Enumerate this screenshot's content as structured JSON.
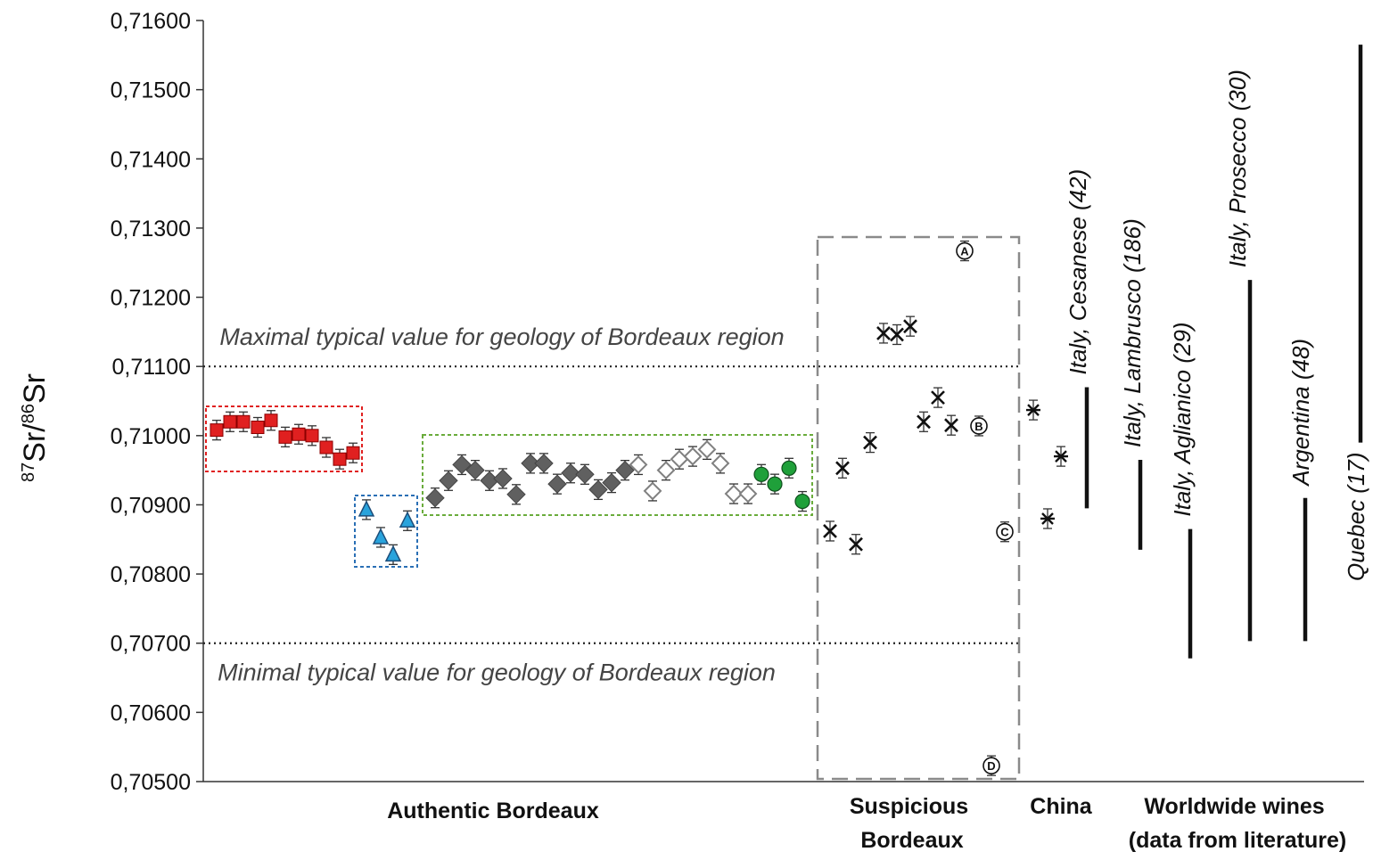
{
  "chart_data": {
    "type": "scatter",
    "ylabel": {
      "sup1": "87",
      "text1": "Sr/",
      "sup2": "86",
      "text2": "Sr"
    },
    "ylim": [
      0.705,
      0.716
    ],
    "yticks": [
      "0,70500",
      "0,70600",
      "0,70700",
      "0,70800",
      "0,70900",
      "0,71000",
      "0,71100",
      "0,71200",
      "0,71300",
      "0,71400",
      "0,71500",
      "0,71600"
    ],
    "grid": false,
    "reference_lines": [
      {
        "y": 0.711,
        "label": "Maximal typical value for geology of Bordeaux region"
      },
      {
        "y": 0.707,
        "label": "Minimal typical value for geology of Bordeaux region"
      }
    ],
    "categories": [
      {
        "label": "Authentic Bordeaux"
      },
      {
        "label": "Suspicious\nBordeaux"
      },
      {
        "label": "China"
      },
      {
        "label": "Worldwide wines\n(data from literature)"
      }
    ],
    "series": [
      {
        "marker": "square",
        "color": "#e02020",
        "values": [
          0.71008,
          0.7102,
          0.7102,
          0.71012,
          0.71022,
          0.70998,
          0.71002,
          0.71,
          0.70983,
          0.70966,
          0.70975
        ]
      },
      {
        "marker": "triangle",
        "color": "#29a3dc",
        "values": [
          0.70893,
          0.70853,
          0.70828,
          0.70877
        ]
      },
      {
        "marker": "diamond",
        "color": "#606060",
        "values": [
          0.7091,
          0.70935,
          0.70958,
          0.7095,
          0.70935,
          0.70938,
          0.70915,
          0.7096,
          0.7096,
          0.7093,
          0.70946,
          0.70944,
          0.70922,
          0.70932,
          0.7095
        ]
      },
      {
        "marker": "diamond-open",
        "color": "#808080",
        "values": [
          0.70958,
          0.7092,
          0.7095,
          0.70966,
          0.7097,
          0.7098,
          0.7096,
          0.70916,
          0.70916
        ]
      },
      {
        "marker": "circle",
        "color": "#1fa03a",
        "values": [
          0.70944,
          0.7093,
          0.70953,
          0.70905
        ]
      },
      {
        "marker": "x",
        "color": "#111111",
        "values": [
          0.70862,
          0.70953,
          0.70843,
          0.7099,
          0.71148,
          0.71146,
          0.71158,
          0.7102,
          0.71055,
          0.71015
        ]
      },
      {
        "marker": "letter-circle",
        "color": "#111111",
        "points": [
          {
            "label": "A",
            "y": 0.71267
          },
          {
            "label": "B",
            "y": 0.71014
          },
          {
            "label": "C",
            "y": 0.70861
          },
          {
            "label": "D",
            "y": 0.70523
          }
        ]
      },
      {
        "marker": "star",
        "color": "#111111",
        "values": [
          0.71037,
          0.7097,
          0.7088
        ]
      }
    ],
    "literature_ranges": [
      {
        "label": "Italy, Cesanese (42)",
        "min": 0.70895,
        "max": 0.7107
      },
      {
        "label": "Italy, Lambrusco (186)",
        "min": 0.70835,
        "max": 0.70965
      },
      {
        "label": "Italy, Aglianico (29)",
        "min": 0.70678,
        "max": 0.70865
      },
      {
        "label": "Italy, Prosecco (30)",
        "min": 0.70703,
        "max": 0.71225
      },
      {
        "label": "Argentina (48)",
        "min": 0.70703,
        "max": 0.7091
      },
      {
        "label": "Quebec (17)",
        "min": 0.7099,
        "max": 0.71565
      }
    ]
  }
}
